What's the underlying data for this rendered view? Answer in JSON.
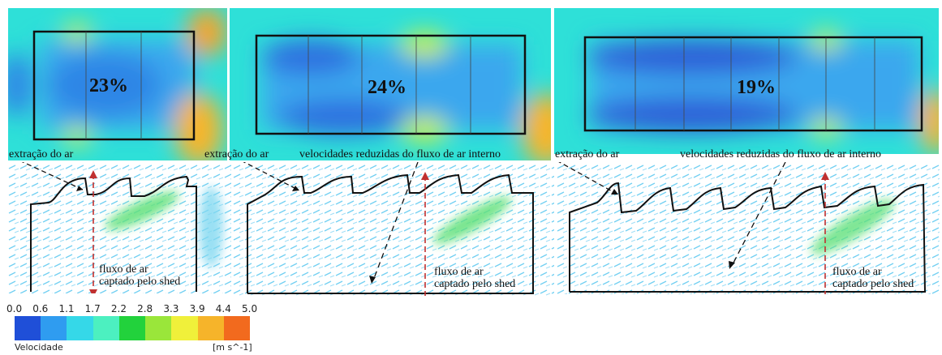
{
  "plan_views": [
    {
      "percent": "23%"
    },
    {
      "percent": "24%"
    },
    {
      "percent": "19%"
    }
  ],
  "annotations": {
    "extraction_1": "extração do ar",
    "extraction_2": "extração do ar",
    "extraction_3": "extração do ar",
    "reduced_velocity_1": "velocidades reduzidas do fluxo de ar interno",
    "reduced_velocity_2": "velocidades reduzidas do fluxo de ar interno",
    "shed_flow_1": [
      "fluxo de ar",
      "captado pelo shed"
    ],
    "shed_flow_2": [
      "fluxo de ar",
      "captado pelo shed"
    ],
    "shed_flow_3": [
      "fluxo de ar",
      "captado pelo shed"
    ]
  },
  "legend": {
    "title": "Velocidade",
    "unit": "[m s^-1]",
    "ticks": [
      "0.0",
      "0.6",
      "1.1",
      "1.7",
      "2.2",
      "2.8",
      "3.3",
      "3.9",
      "4.4",
      "5.0"
    ],
    "colors": [
      "#1f4fd8",
      "#2f9cf0",
      "#35d8e8",
      "#4cf0c0",
      "#22d23c",
      "#9ae63a",
      "#f0f03a",
      "#f6b42a",
      "#f26a1e"
    ]
  }
}
